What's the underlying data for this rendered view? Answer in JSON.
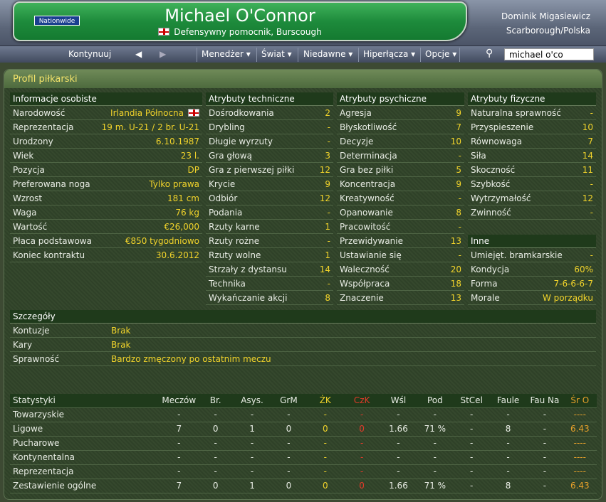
{
  "header": {
    "logo": "Nationwide",
    "player_name": "Michael O'Connor",
    "subtitle": "Defensywny pomocnik, Burscough",
    "manager": "Dominik Migasiewicz",
    "club": "Scarborough/Polska"
  },
  "nav": {
    "continue": "Kontynuuj",
    "menus": [
      "Menedżer",
      "Świat",
      "Niedawne",
      "Hiperłącza",
      "Opcje"
    ],
    "search_value": "michael o'co"
  },
  "panel_title": "Profil piłkarski",
  "personal": {
    "title": "Informacje osobiste",
    "rows": [
      [
        "Narodowość",
        "Irlandia Północna"
      ],
      [
        "Reprezentacja",
        "19 m. U-21 / 2 br. U-21"
      ],
      [
        "Urodzony",
        "6.10.1987"
      ],
      [
        "Wiek",
        "23 l."
      ],
      [
        "Pozycja",
        "DP"
      ],
      [
        "Preferowana noga",
        "Tylko prawa"
      ],
      [
        "Wzrost",
        "181 cm"
      ],
      [
        "Waga",
        "76 kg"
      ],
      [
        "Wartość",
        "€26,000"
      ],
      [
        "Płaca podstawowa",
        "€850 tygodniowo"
      ],
      [
        "Koniec kontraktu",
        "30.6.2012"
      ]
    ]
  },
  "technical": {
    "title": "Atrybuty techniczne",
    "rows": [
      [
        "Dośrodkowania",
        "2"
      ],
      [
        "Drybling",
        "-"
      ],
      [
        "Długie wyrzuty",
        "-"
      ],
      [
        "Gra głową",
        "3"
      ],
      [
        "Gra z pierwszej piłki",
        "12"
      ],
      [
        "Krycie",
        "9"
      ],
      [
        "Odbiór",
        "12"
      ],
      [
        "Podania",
        "-"
      ],
      [
        "Rzuty karne",
        "1"
      ],
      [
        "Rzuty rożne",
        "-"
      ],
      [
        "Rzuty wolne",
        "1"
      ],
      [
        "Strzały z dystansu",
        "14"
      ],
      [
        "Technika",
        "-"
      ],
      [
        "Wykańczanie akcji",
        "8"
      ]
    ]
  },
  "mental": {
    "title": "Atrybuty psychiczne",
    "rows": [
      [
        "Agresja",
        "9"
      ],
      [
        "Błyskotliwość",
        "7"
      ],
      [
        "Decyzje",
        "10"
      ],
      [
        "Determinacja",
        "-"
      ],
      [
        "Gra bez piłki",
        "5"
      ],
      [
        "Koncentracja",
        "9"
      ],
      [
        "Kreatywność",
        "-"
      ],
      [
        "Opanowanie",
        "8"
      ],
      [
        "Pracowitość",
        "-"
      ],
      [
        "Przewidywanie",
        "13"
      ],
      [
        "Ustawianie się",
        "-"
      ],
      [
        "Waleczność",
        "20"
      ],
      [
        "Współpraca",
        "18"
      ],
      [
        "Znaczenie",
        "13"
      ]
    ]
  },
  "physical": {
    "title": "Atrybuty fizyczne",
    "rows": [
      [
        "Naturalna sprawność",
        "-"
      ],
      [
        "Przyspieszenie",
        "10"
      ],
      [
        "Równowaga",
        "7"
      ],
      [
        "Siła",
        "14"
      ],
      [
        "Skoczność",
        "11"
      ],
      [
        "Szybkość",
        "-"
      ],
      [
        "Wytrzymałość",
        "12"
      ],
      [
        "Zwinność",
        "-"
      ]
    ]
  },
  "other": {
    "title": "Inne",
    "rows": [
      [
        "Umiejęt. bramkarskie",
        "-"
      ],
      [
        "Kondycja",
        "60%"
      ],
      [
        "Forma",
        "7-6-6-6-7"
      ],
      [
        "Morale",
        "W porządku"
      ]
    ]
  },
  "details": {
    "title": "Szczegóły",
    "rows": [
      [
        "Kontuzje",
        "Brak"
      ],
      [
        "Kary",
        "Brak"
      ],
      [
        "Sprawność",
        "Bardzo zmęczony po ostatnim meczu"
      ]
    ]
  },
  "stats": {
    "headers": [
      "Statystyki",
      "Meczów",
      "Br.",
      "Asys.",
      "GrM",
      "ŻK",
      "CzK",
      "Wśl",
      "Pod",
      "StCel",
      "Faule",
      "Fau Na",
      "Śr O"
    ],
    "rows": [
      [
        "Towarzyskie",
        "-",
        "-",
        "-",
        "-",
        "-",
        "-",
        "-",
        "-",
        "-",
        "-",
        "-",
        "----"
      ],
      [
        "Ligowe",
        "7",
        "0",
        "1",
        "0",
        "0",
        "0",
        "1.66",
        "71 %",
        "-",
        "8",
        "-",
        "6.43"
      ],
      [
        "Pucharowe",
        "-",
        "-",
        "-",
        "-",
        "-",
        "-",
        "-",
        "-",
        "-",
        "-",
        "-",
        "----"
      ],
      [
        "Kontynentalna",
        "-",
        "-",
        "-",
        "-",
        "-",
        "-",
        "-",
        "-",
        "-",
        "-",
        "-",
        "----"
      ],
      [
        "Reprezentacja",
        "-",
        "-",
        "-",
        "-",
        "-",
        "-",
        "-",
        "-",
        "-",
        "-",
        "-",
        "----"
      ],
      [
        "Zestawienie ogólne",
        "7",
        "0",
        "1",
        "0",
        "0",
        "0",
        "1.66",
        "71 %",
        "-",
        "8",
        "-",
        "6.43"
      ]
    ]
  },
  "colors": {
    "value": "#f1d32b",
    "rating": "#e8a12a",
    "red_card": "#e23a2a",
    "banner": "#1e8b3c"
  }
}
